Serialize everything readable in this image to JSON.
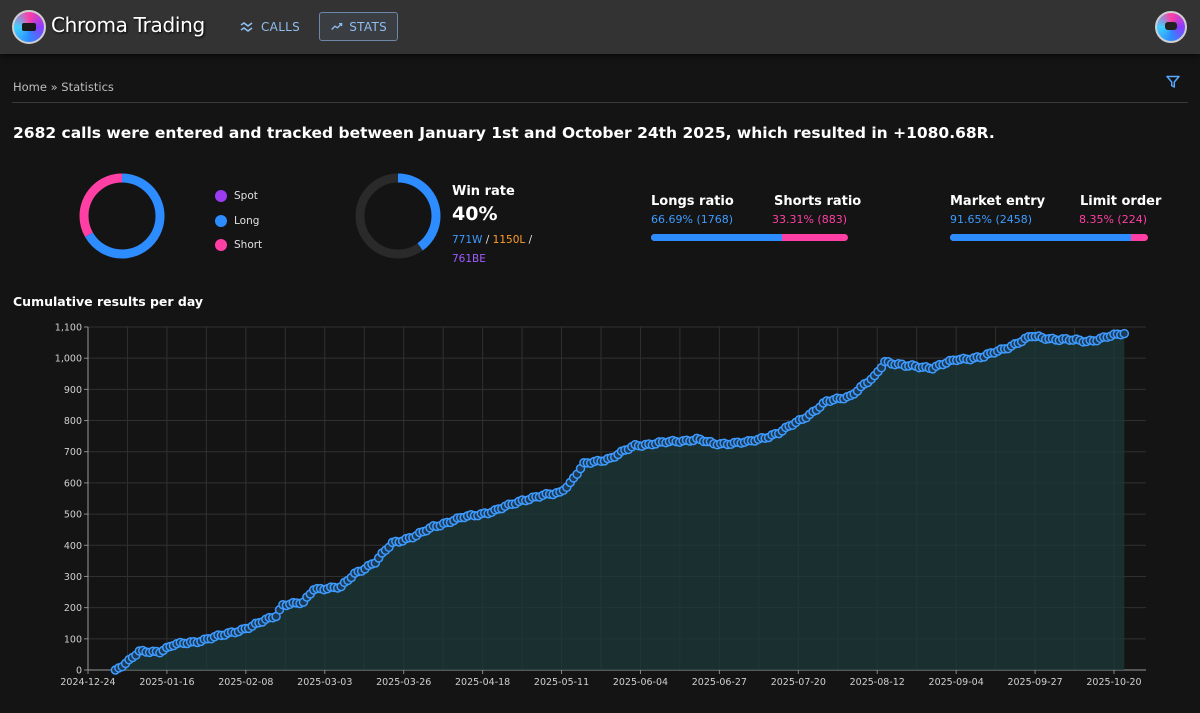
{
  "header": {
    "brand": "Chroma Trading",
    "nav": [
      {
        "label": "CALLS",
        "icon": "calls-icon",
        "active": false
      },
      {
        "label": "STATS",
        "icon": "stats-icon",
        "active": true
      }
    ],
    "avatar_icon": "user-avatar"
  },
  "breadcrumb": "Home » Statistics",
  "filter_icon": "filter-icon",
  "headline": "2682 calls were entered and tracked between January 1st and October 24th 2025, which resulted in +1080.68R.",
  "distribution": {
    "legend": [
      {
        "label": "Spot",
        "color": "#9b3cf2"
      },
      {
        "label": "Long",
        "color": "#2d8cff"
      },
      {
        "label": "Short",
        "color": "#ff3fa4"
      }
    ],
    "values": [
      0.01,
      66.69,
      33.31
    ]
  },
  "winrate": {
    "title": "Win rate",
    "value": "40%",
    "fraction": 0.4,
    "wins": "771W",
    "losses": "1150L",
    "be": "761BE",
    "sep": "/"
  },
  "longs_shorts": {
    "left_title": "Longs ratio",
    "right_title": "Shorts ratio",
    "left_value": "66.69% (1768)",
    "right_value": "33.31% (883)",
    "left_fraction": 0.6669
  },
  "entry_types": {
    "left_title": "Market entry",
    "right_title": "Limit order",
    "left_value": "91.65% (2458)",
    "right_value": "8.35% (224)",
    "left_fraction": 0.9165
  },
  "chart_title": "Cumulative results per day",
  "chart_data": {
    "type": "line",
    "x_start": "2024-12-24",
    "x_ticks": [
      "2024-12-24",
      "2025-01-16",
      "2025-02-08",
      "2025-03-03",
      "2025-03-26",
      "2025-04-18",
      "2025-05-11",
      "2025-06-04",
      "2025-06-27",
      "2025-07-20",
      "2025-08-12",
      "2025-09-04",
      "2025-09-27",
      "2025-10-20"
    ],
    "ylim": [
      0,
      1100
    ],
    "y_ticks": [
      "0",
      "100",
      "200",
      "300",
      "400",
      "500",
      "600",
      "700",
      "800",
      "900",
      "1,000",
      "1,100"
    ],
    "anchors": [
      [
        "2025-01-01",
        0
      ],
      [
        "2025-01-05",
        30
      ],
      [
        "2025-01-08",
        58
      ],
      [
        "2025-01-14",
        60
      ],
      [
        "2025-01-18",
        80
      ],
      [
        "2025-01-24",
        90
      ],
      [
        "2025-02-01",
        110
      ],
      [
        "2025-02-10",
        140
      ],
      [
        "2025-02-17",
        175
      ],
      [
        "2025-02-19",
        210
      ],
      [
        "2025-02-25",
        215
      ],
      [
        "2025-02-28",
        260
      ],
      [
        "2025-03-08",
        265
      ],
      [
        "2025-03-12",
        310
      ],
      [
        "2025-03-18",
        345
      ],
      [
        "2025-03-23",
        408
      ],
      [
        "2025-03-30",
        430
      ],
      [
        "2025-04-04",
        460
      ],
      [
        "2025-04-13",
        490
      ],
      [
        "2025-04-22",
        510
      ],
      [
        "2025-04-30",
        545
      ],
      [
        "2025-05-11",
        570
      ],
      [
        "2025-05-14",
        600
      ],
      [
        "2025-05-18",
        660
      ],
      [
        "2025-05-26",
        680
      ],
      [
        "2025-06-02",
        720
      ],
      [
        "2025-06-11",
        730
      ],
      [
        "2025-06-20",
        740
      ],
      [
        "2025-06-25",
        725
      ],
      [
        "2025-07-05",
        730
      ],
      [
        "2025-07-14",
        760
      ],
      [
        "2025-07-23",
        820
      ],
      [
        "2025-07-28",
        860
      ],
      [
        "2025-08-04",
        880
      ],
      [
        "2025-08-11",
        940
      ],
      [
        "2025-08-14",
        990
      ],
      [
        "2025-08-20",
        975
      ],
      [
        "2025-08-28",
        970
      ],
      [
        "2025-09-04",
        995
      ],
      [
        "2025-09-12",
        1005
      ],
      [
        "2025-09-20",
        1040
      ],
      [
        "2025-09-26",
        1070
      ],
      [
        "2025-10-04",
        1060
      ],
      [
        "2025-10-12",
        1055
      ],
      [
        "2025-10-15",
        1060
      ],
      [
        "2025-10-23",
        1080
      ]
    ]
  }
}
